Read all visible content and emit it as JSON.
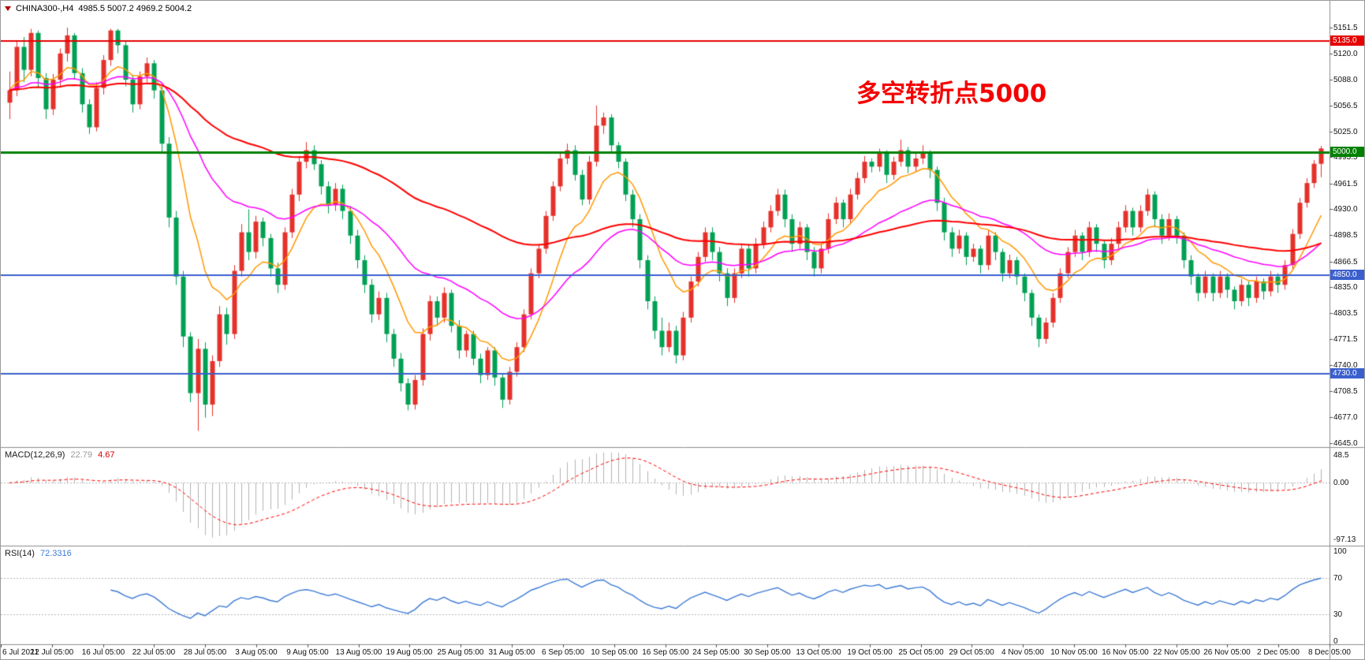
{
  "header": {
    "symbol": "CHINA300-,H4",
    "ohlc": "4985.5 5007.2 4969.2 5004.2"
  },
  "annotation": {
    "text": "多空转折点5000",
    "color": "#f50000"
  },
  "macd_panel": {
    "name": "MACD(12,26,9)",
    "main_value": "22.79",
    "signal_value": "4.67",
    "scale": [
      "48.5",
      "0.00",
      "-97.13"
    ]
  },
  "rsi_panel": {
    "name": "RSI(14)",
    "value": "72.3316",
    "scale": [
      "100",
      "70",
      "30",
      "0"
    ]
  },
  "price_scale": {
    "ticks": [
      "5151.5",
      "5120.0",
      "5088.0",
      "5056.5",
      "5025.0",
      "4993.5",
      "4961.5",
      "4930.0",
      "4898.5",
      "4866.5",
      "4835.0",
      "4803.5",
      "4771.5",
      "4740.0",
      "4708.5",
      "4677.0",
      "4645.0"
    ],
    "badges": [
      {
        "label": "5135.0",
        "price": 5135.0,
        "color": "#e60000"
      },
      {
        "label": "5000.0",
        "price": 5000.0,
        "color": "#008000"
      },
      {
        "label": "4850.0",
        "price": 4850.0,
        "color": "#3a5fcd"
      },
      {
        "label": "4730.0",
        "price": 4730.0,
        "color": "#3a5fcd"
      }
    ]
  },
  "chart_data": {
    "type": "candlestick",
    "title": "CHINA300-,H4",
    "timeframe": "H4",
    "ylim": [
      4645.0,
      5151.5
    ],
    "up_color": "#e5312b",
    "down_color": "#00a053",
    "x_labels": [
      "6 Jul 2021",
      "12 Jul 05:00",
      "16 Jul 05:00",
      "22 Jul 05:00",
      "28 Jul 05:00",
      "3 Aug 05:00",
      "9 Aug 05:00",
      "13 Aug 05:00",
      "19 Aug 05:00",
      "25 Aug 05:00",
      "31 Aug 05:00",
      "6 Sep 05:00",
      "10 Sep 05:00",
      "16 Sep 05:00",
      "24 Sep 05:00",
      "30 Sep 05:00",
      "13 Oct 05:00",
      "19 Oct 05:00",
      "25 Oct 05:00",
      "29 Oct 05:00",
      "4 Nov 05:00",
      "10 Nov 05:00",
      "16 Nov 05:00",
      "22 Nov 05:00",
      "26 Nov 05:00",
      "2 Dec 05:00",
      "8 Dec 05:00"
    ],
    "horizontal_levels": [
      {
        "price": 5135.0,
        "color": "#e60000",
        "width": 2
      },
      {
        "price": 5000.0,
        "color": "#008000",
        "width": 3
      },
      {
        "price": 4850.0,
        "color": "#3a5fcd",
        "width": 2
      },
      {
        "price": 4730.0,
        "color": "#3a5fcd",
        "width": 2
      }
    ],
    "moving_averages": [
      {
        "period": 10,
        "color": "#ff9900",
        "width": 1.5
      },
      {
        "period": 30,
        "color": "#ff00ff",
        "width": 1.5
      },
      {
        "period": 80,
        "color": "#ff0000",
        "width": 2
      }
    ],
    "macd": {
      "fast": 12,
      "slow": 26,
      "signal": 9,
      "histogram_color": "#b4b4b4",
      "signal_color": "#ff0000",
      "last_main": 22.79,
      "last_signal": 4.67,
      "visible_range": [
        -97.13,
        48.5
      ]
    },
    "rsi": {
      "period": 14,
      "color": "#3e7bd6",
      "levels": [
        30,
        70
      ],
      "last": 72.3316
    },
    "candles": [
      [
        5060,
        5098,
        5040,
        5075
      ],
      [
        5075,
        5135,
        5068,
        5128
      ],
      [
        5128,
        5140,
        5085,
        5100
      ],
      [
        5100,
        5150,
        5092,
        5145
      ],
      [
        5145,
        5148,
        5078,
        5090
      ],
      [
        5090,
        5096,
        5040,
        5052
      ],
      [
        5052,
        5095,
        5045,
        5088
      ],
      [
        5088,
        5126,
        5080,
        5120
      ],
      [
        5120,
        5151.5,
        5110,
        5142
      ],
      [
        5142,
        5145,
        5088,
        5096
      ],
      [
        5096,
        5102,
        5048,
        5058
      ],
      [
        5058,
        5064,
        5022,
        5030
      ],
      [
        5030,
        5085,
        5025,
        5078
      ],
      [
        5078,
        5118,
        5070,
        5112
      ],
      [
        5112,
        5150,
        5105,
        5148
      ],
      [
        5148,
        5150,
        5120,
        5130
      ],
      [
        5130,
        5136,
        5080,
        5088
      ],
      [
        5088,
        5094,
        5048,
        5058
      ],
      [
        5058,
        5098,
        5052,
        5092
      ],
      [
        5092,
        5115,
        5085,
        5108
      ],
      [
        5108,
        5112,
        5065,
        5075
      ],
      [
        5075,
        5080,
        5000,
        5010
      ],
      [
        5010,
        5018,
        4908,
        4920
      ],
      [
        4920,
        4928,
        4838,
        4848
      ],
      [
        4848,
        4855,
        4762,
        4775
      ],
      [
        4775,
        4780,
        4695,
        4706
      ],
      [
        4706,
        4772,
        4660,
        4760
      ],
      [
        4760,
        4768,
        4676,
        4692
      ],
      [
        4692,
        4752,
        4678,
        4745
      ],
      [
        4745,
        4812,
        4738,
        4802
      ],
      [
        4802,
        4810,
        4765,
        4778
      ],
      [
        4778,
        4862,
        4772,
        4855
      ],
      [
        4855,
        4912,
        4848,
        4902
      ],
      [
        4902,
        4930,
        4868,
        4878
      ],
      [
        4878,
        4922,
        4870,
        4915
      ],
      [
        4915,
        4920,
        4885,
        4895
      ],
      [
        4895,
        4900,
        4848,
        4858
      ],
      [
        4858,
        4865,
        4828,
        4838
      ],
      [
        4838,
        4908,
        4832,
        4902
      ],
      [
        4902,
        4955,
        4895,
        4948
      ],
      [
        4948,
        4995,
        4940,
        4988
      ],
      [
        4988,
        5012,
        4980,
        5002
      ],
      [
        5002,
        5008,
        4978,
        4985
      ],
      [
        4985,
        4990,
        4948,
        4958
      ],
      [
        4958,
        4964,
        4925,
        4935
      ],
      [
        4935,
        4962,
        4928,
        4955
      ],
      [
        4955,
        4960,
        4918,
        4928
      ],
      [
        4928,
        4934,
        4888,
        4898
      ],
      [
        4898,
        4905,
        4858,
        4868
      ],
      [
        4868,
        4874,
        4828,
        4838
      ],
      [
        4838,
        4845,
        4792,
        4802
      ],
      [
        4802,
        4830,
        4795,
        4822
      ],
      [
        4822,
        4828,
        4768,
        4778
      ],
      [
        4778,
        4784,
        4738,
        4748
      ],
      [
        4748,
        4755,
        4708,
        4718
      ],
      [
        4718,
        4724,
        4685,
        4692
      ],
      [
        4692,
        4728,
        4686,
        4722
      ],
      [
        4722,
        4785,
        4715,
        4778
      ],
      [
        4778,
        4825,
        4770,
        4818
      ],
      [
        4818,
        4824,
        4788,
        4798
      ],
      [
        4798,
        4835,
        4792,
        4828
      ],
      [
        4828,
        4832,
        4780,
        4788
      ],
      [
        4788,
        4795,
        4748,
        4758
      ],
      [
        4758,
        4782,
        4750,
        4778
      ],
      [
        4778,
        4782,
        4740,
        4748
      ],
      [
        4748,
        4754,
        4718,
        4728
      ],
      [
        4728,
        4762,
        4722,
        4758
      ],
      [
        4758,
        4762,
        4715,
        4725
      ],
      [
        4725,
        4730,
        4688,
        4698
      ],
      [
        4698,
        4738,
        4692,
        4732
      ],
      [
        4732,
        4768,
        4726,
        4762
      ],
      [
        4762,
        4808,
        4756,
        4802
      ],
      [
        4802,
        4858,
        4796,
        4852
      ],
      [
        4852,
        4888,
        4846,
        4882
      ],
      [
        4882,
        4928,
        4876,
        4922
      ],
      [
        4922,
        4964,
        4916,
        4958
      ],
      [
        4958,
        4998,
        4952,
        4992
      ],
      [
        4992,
        5010,
        4985,
        5002
      ],
      [
        5002,
        5008,
        4965,
        4972
      ],
      [
        4972,
        4978,
        4935,
        4942
      ],
      [
        4942,
        4995,
        4936,
        4988
      ],
      [
        4988,
        5056.5,
        4982,
        5032
      ],
      [
        5032,
        5048,
        5022,
        5042
      ],
      [
        5042,
        5046,
        4998,
        5008
      ],
      [
        5008,
        5012,
        4980,
        4988
      ],
      [
        4988,
        4992,
        4940,
        4948
      ],
      [
        4948,
        4954,
        4908,
        4918
      ],
      [
        4918,
        4924,
        4858,
        4868
      ],
      [
        4868,
        4874,
        4808,
        4818
      ],
      [
        4818,
        4824,
        4772,
        4782
      ],
      [
        4782,
        4798,
        4752,
        4762
      ],
      [
        4762,
        4792,
        4756,
        4782
      ],
      [
        4782,
        4788,
        4742,
        4752
      ],
      [
        4752,
        4805,
        4746,
        4798
      ],
      [
        4798,
        4848,
        4792,
        4842
      ],
      [
        4842,
        4878,
        4836,
        4872
      ],
      [
        4872,
        4908,
        4866,
        4902
      ],
      [
        4902,
        4908,
        4868,
        4878
      ],
      [
        4878,
        4884,
        4842,
        4852
      ],
      [
        4852,
        4858,
        4812,
        4822
      ],
      [
        4822,
        4858,
        4816,
        4852
      ],
      [
        4852,
        4888,
        4846,
        4882
      ],
      [
        4882,
        4888,
        4848,
        4858
      ],
      [
        4858,
        4895,
        4852,
        4888
      ],
      [
        4888,
        4915,
        4882,
        4908
      ],
      [
        4908,
        4935,
        4902,
        4928
      ],
      [
        4928,
        4955,
        4922,
        4948
      ],
      [
        4948,
        4954,
        4908,
        4918
      ],
      [
        4918,
        4924,
        4878,
        4888
      ],
      [
        4888,
        4915,
        4882,
        4908
      ],
      [
        4908,
        4912,
        4868,
        4878
      ],
      [
        4878,
        4884,
        4848,
        4858
      ],
      [
        4858,
        4888,
        4852,
        4882
      ],
      [
        4882,
        4925,
        4876,
        4918
      ],
      [
        4918,
        4945,
        4912,
        4938
      ],
      [
        4938,
        4942,
        4908,
        4918
      ],
      [
        4918,
        4955,
        4912,
        4948
      ],
      [
        4948,
        4975,
        4942,
        4968
      ],
      [
        4968,
        4995,
        4962,
        4988
      ],
      [
        4988,
        4992,
        4975,
        4982
      ],
      [
        4982,
        5004,
        4976,
        4998
      ],
      [
        4998,
        5002,
        4962,
        4972
      ],
      [
        4972,
        4994,
        4966,
        4988
      ],
      [
        4988,
        5015,
        4982,
        5002
      ],
      [
        5002,
        5006,
        4974,
        4982
      ],
      [
        4982,
        4998,
        4976,
        4992
      ],
      [
        4992,
        5008,
        4985,
        4998
      ],
      [
        4998,
        5002,
        4968,
        4978
      ],
      [
        4978,
        4982,
        4928,
        4938
      ],
      [
        4938,
        4944,
        4892,
        4902
      ],
      [
        4902,
        4908,
        4872,
        4882
      ],
      [
        4882,
        4905,
        4876,
        4898
      ],
      [
        4898,
        4902,
        4862,
        4872
      ],
      [
        4872,
        4888,
        4866,
        4882
      ],
      [
        4882,
        4886,
        4852,
        4862
      ],
      [
        4862,
        4905,
        4856,
        4898
      ],
      [
        4898,
        4902,
        4868,
        4878
      ],
      [
        4878,
        4882,
        4842,
        4852
      ],
      [
        4852,
        4875,
        4846,
        4868
      ],
      [
        4868,
        4872,
        4838,
        4848
      ],
      [
        4848,
        4852,
        4818,
        4828
      ],
      [
        4828,
        4832,
        4788,
        4798
      ],
      [
        4798,
        4802,
        4762,
        4772
      ],
      [
        4772,
        4798,
        4766,
        4792
      ],
      [
        4792,
        4828,
        4786,
        4822
      ],
      [
        4822,
        4858,
        4816,
        4852
      ],
      [
        4852,
        4884,
        4846,
        4878
      ],
      [
        4878,
        4905,
        4872,
        4898
      ],
      [
        4898,
        4902,
        4868,
        4878
      ],
      [
        4878,
        4915,
        4872,
        4908
      ],
      [
        4908,
        4912,
        4878,
        4888
      ],
      [
        4888,
        4892,
        4858,
        4868
      ],
      [
        4868,
        4895,
        4862,
        4888
      ],
      [
        4888,
        4915,
        4882,
        4908
      ],
      [
        4908,
        4935,
        4902,
        4928
      ],
      [
        4928,
        4932,
        4898,
        4908
      ],
      [
        4908,
        4935,
        4902,
        4928
      ],
      [
        4928,
        4955,
        4922,
        4948
      ],
      [
        4948,
        4952,
        4908,
        4918
      ],
      [
        4918,
        4924,
        4888,
        4898
      ],
      [
        4898,
        4925,
        4892,
        4918
      ],
      [
        4918,
        4922,
        4888,
        4898
      ],
      [
        4898,
        4902,
        4858,
        4868
      ],
      [
        4868,
        4874,
        4838,
        4848
      ],
      [
        4848,
        4852,
        4818,
        4828
      ],
      [
        4828,
        4855,
        4822,
        4848
      ],
      [
        4848,
        4852,
        4818,
        4828
      ],
      [
        4828,
        4855,
        4822,
        4848
      ],
      [
        4848,
        4852,
        4822,
        4832
      ],
      [
        4832,
        4836,
        4808,
        4818
      ],
      [
        4818,
        4845,
        4812,
        4838
      ],
      [
        4838,
        4842,
        4812,
        4822
      ],
      [
        4822,
        4848,
        4816,
        4842
      ],
      [
        4842,
        4846,
        4820,
        4830
      ],
      [
        4830,
        4855,
        4824,
        4848
      ],
      [
        4848,
        4852,
        4828,
        4838
      ],
      [
        4838,
        4868,
        4832,
        4862
      ],
      [
        4862,
        4906,
        4856,
        4900
      ],
      [
        4900,
        4944,
        4894,
        4938
      ],
      [
        4938,
        4968,
        4932,
        4962
      ],
      [
        4962,
        4990,
        4956,
        4985.5
      ],
      [
        4985.5,
        5007.2,
        4969.2,
        5004.2
      ]
    ]
  }
}
